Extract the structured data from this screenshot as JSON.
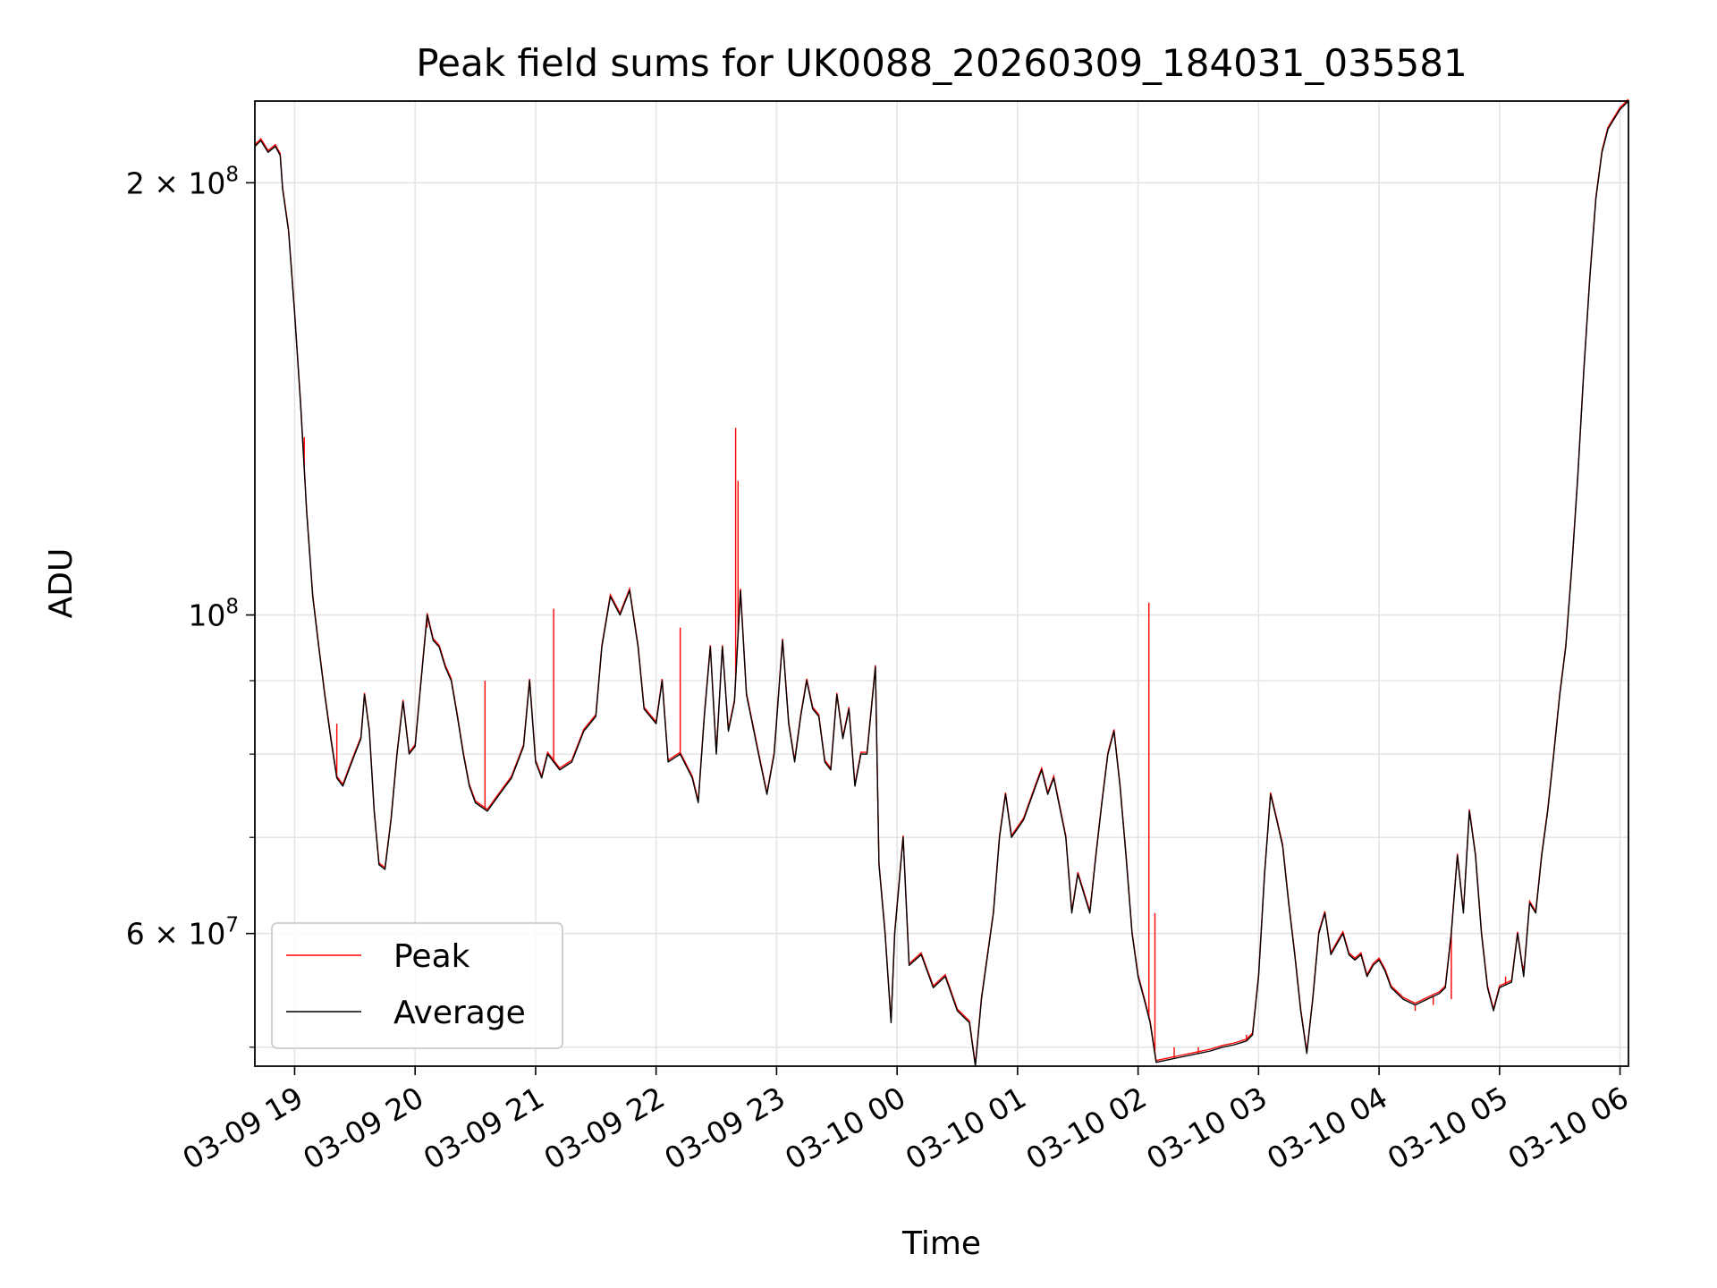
{
  "chart_data": {
    "type": "line",
    "title": "Peak field sums for UK0088_20260309_184031_035581",
    "xlabel": "Time",
    "ylabel": "ADU",
    "yscale": "log",
    "ylim": [
      48500000,
      228000000
    ],
    "xlim_hours": [
      18.67,
      30.07
    ],
    "grid": true,
    "legend_position": "lower-left",
    "x_ticks": [
      {
        "h": 19,
        "label": "03-09 19"
      },
      {
        "h": 20,
        "label": "03-09 20"
      },
      {
        "h": 21,
        "label": "03-09 21"
      },
      {
        "h": 22,
        "label": "03-09 22"
      },
      {
        "h": 23,
        "label": "03-09 23"
      },
      {
        "h": 24,
        "label": "03-10 00"
      },
      {
        "h": 25,
        "label": "03-10 01"
      },
      {
        "h": 26,
        "label": "03-10 02"
      },
      {
        "h": 27,
        "label": "03-10 03"
      },
      {
        "h": 28,
        "label": "03-10 04"
      },
      {
        "h": 29,
        "label": "03-10 05"
      },
      {
        "h": 30,
        "label": "03-10 06"
      }
    ],
    "y_major_ticks": [
      {
        "v": 60000000,
        "mant": "6",
        "exp": "7"
      },
      {
        "v": 100000000,
        "mant": "",
        "exp": "8"
      },
      {
        "v": 200000000,
        "mant": "2",
        "exp": "8"
      }
    ],
    "y_minor_ticks": [
      50000000,
      70000000,
      80000000,
      90000000
    ],
    "series": [
      {
        "name": "Peak",
        "color": "#ff0000",
        "spikes": [
          [
            19.08,
            133000000
          ],
          [
            19.35,
            84000000
          ],
          [
            20.1,
            98000000
          ],
          [
            20.58,
            90000000
          ],
          [
            21.15,
            101000000
          ],
          [
            22.2,
            98000000
          ],
          [
            22.66,
            135000000
          ],
          [
            22.68,
            124000000
          ],
          [
            26.09,
            102000000
          ],
          [
            26.14,
            62000000
          ],
          [
            26.3,
            50000000
          ],
          [
            26.5,
            50000000
          ],
          [
            26.7,
            50000000
          ],
          [
            26.9,
            51000000
          ],
          [
            28.3,
            53000000
          ],
          [
            28.45,
            53500000
          ],
          [
            28.6,
            54000000
          ],
          [
            29.05,
            56000000
          ],
          [
            29.2,
            57000000
          ]
        ]
      },
      {
        "name": "Average",
        "color": "#000000",
        "points": [
          [
            18.67,
            212000000
          ],
          [
            18.72,
            214000000
          ],
          [
            18.78,
            210000000
          ],
          [
            18.84,
            212000000
          ],
          [
            18.88,
            209000000
          ],
          [
            18.9,
            198000000
          ],
          [
            18.95,
            185000000
          ],
          [
            19.0,
            162000000
          ],
          [
            19.05,
            140000000
          ],
          [
            19.1,
            118000000
          ],
          [
            19.15,
            103000000
          ],
          [
            19.2,
            95000000
          ],
          [
            19.25,
            88000000
          ],
          [
            19.3,
            82000000
          ],
          [
            19.35,
            77000000
          ],
          [
            19.4,
            76000000
          ],
          [
            19.45,
            78000000
          ],
          [
            19.5,
            80000000
          ],
          [
            19.55,
            82000000
          ],
          [
            19.58,
            88000000
          ],
          [
            19.62,
            83000000
          ],
          [
            19.66,
            73000000
          ],
          [
            19.7,
            67000000
          ],
          [
            19.75,
            66500000
          ],
          [
            19.8,
            72000000
          ],
          [
            19.85,
            80000000
          ],
          [
            19.9,
            87000000
          ],
          [
            19.95,
            80000000
          ],
          [
            20.0,
            81000000
          ],
          [
            20.05,
            90000000
          ],
          [
            20.1,
            100000000
          ],
          [
            20.15,
            96000000
          ],
          [
            20.2,
            95000000
          ],
          [
            20.25,
            92000000
          ],
          [
            20.3,
            90000000
          ],
          [
            20.35,
            85000000
          ],
          [
            20.4,
            80000000
          ],
          [
            20.45,
            76000000
          ],
          [
            20.5,
            74000000
          ],
          [
            20.6,
            73000000
          ],
          [
            20.7,
            75000000
          ],
          [
            20.8,
            77000000
          ],
          [
            20.9,
            81000000
          ],
          [
            20.95,
            90000000
          ],
          [
            21.0,
            79000000
          ],
          [
            21.05,
            77000000
          ],
          [
            21.1,
            80000000
          ],
          [
            21.2,
            78000000
          ],
          [
            21.3,
            79000000
          ],
          [
            21.4,
            83000000
          ],
          [
            21.5,
            85000000
          ],
          [
            21.55,
            95000000
          ],
          [
            21.62,
            103000000
          ],
          [
            21.7,
            100000000
          ],
          [
            21.78,
            104000000
          ],
          [
            21.85,
            95000000
          ],
          [
            21.9,
            86000000
          ],
          [
            22.0,
            84000000
          ],
          [
            22.05,
            90000000
          ],
          [
            22.1,
            79000000
          ],
          [
            22.2,
            80000000
          ],
          [
            22.3,
            77000000
          ],
          [
            22.35,
            74000000
          ],
          [
            22.4,
            85000000
          ],
          [
            22.45,
            95000000
          ],
          [
            22.5,
            80000000
          ],
          [
            22.55,
            95000000
          ],
          [
            22.6,
            83000000
          ],
          [
            22.65,
            87000000
          ],
          [
            22.7,
            104000000
          ],
          [
            22.75,
            88000000
          ],
          [
            22.85,
            80000000
          ],
          [
            22.92,
            75000000
          ],
          [
            22.98,
            80000000
          ],
          [
            23.05,
            96000000
          ],
          [
            23.1,
            84000000
          ],
          [
            23.15,
            79000000
          ],
          [
            23.2,
            85000000
          ],
          [
            23.25,
            90000000
          ],
          [
            23.3,
            86000000
          ],
          [
            23.35,
            85000000
          ],
          [
            23.4,
            79000000
          ],
          [
            23.45,
            78000000
          ],
          [
            23.5,
            88000000
          ],
          [
            23.55,
            82000000
          ],
          [
            23.6,
            86000000
          ],
          [
            23.65,
            76000000
          ],
          [
            23.7,
            80000000
          ],
          [
            23.75,
            80000000
          ],
          [
            23.82,
            92000000
          ],
          [
            23.85,
            67000000
          ],
          [
            23.9,
            60000000
          ],
          [
            23.95,
            52000000
          ],
          [
            23.98,
            60000000
          ],
          [
            24.05,
            70000000
          ],
          [
            24.1,
            57000000
          ],
          [
            24.2,
            58000000
          ],
          [
            24.3,
            55000000
          ],
          [
            24.4,
            56000000
          ],
          [
            24.5,
            53000000
          ],
          [
            24.6,
            52000000
          ],
          [
            24.65,
            48500000
          ],
          [
            24.7,
            54000000
          ],
          [
            24.8,
            62000000
          ],
          [
            24.85,
            70000000
          ],
          [
            24.9,
            75000000
          ],
          [
            24.95,
            70000000
          ],
          [
            25.05,
            72000000
          ],
          [
            25.15,
            76000000
          ],
          [
            25.2,
            78000000
          ],
          [
            25.25,
            75000000
          ],
          [
            25.3,
            77000000
          ],
          [
            25.4,
            70000000
          ],
          [
            25.45,
            62000000
          ],
          [
            25.5,
            66000000
          ],
          [
            25.6,
            62000000
          ],
          [
            25.65,
            68000000
          ],
          [
            25.7,
            74000000
          ],
          [
            25.75,
            80000000
          ],
          [
            25.8,
            83000000
          ],
          [
            25.85,
            76000000
          ],
          [
            25.9,
            68000000
          ],
          [
            25.95,
            60000000
          ],
          [
            26.0,
            56000000
          ],
          [
            26.05,
            54000000
          ],
          [
            26.1,
            52000000
          ],
          [
            26.15,
            48800000
          ],
          [
            26.25,
            49000000
          ],
          [
            26.35,
            49200000
          ],
          [
            26.5,
            49500000
          ],
          [
            26.6,
            49700000
          ],
          [
            26.7,
            50000000
          ],
          [
            26.8,
            50200000
          ],
          [
            26.9,
            50500000
          ],
          [
            26.95,
            51000000
          ],
          [
            27.0,
            56000000
          ],
          [
            27.05,
            66000000
          ],
          [
            27.1,
            75000000
          ],
          [
            27.15,
            72000000
          ],
          [
            27.2,
            69000000
          ],
          [
            27.25,
            63000000
          ],
          [
            27.3,
            58000000
          ],
          [
            27.35,
            53000000
          ],
          [
            27.4,
            49500000
          ],
          [
            27.45,
            54000000
          ],
          [
            27.5,
            60000000
          ],
          [
            27.55,
            62000000
          ],
          [
            27.6,
            58000000
          ],
          [
            27.65,
            59000000
          ],
          [
            27.7,
            60000000
          ],
          [
            27.75,
            58000000
          ],
          [
            27.8,
            57500000
          ],
          [
            27.85,
            58000000
          ],
          [
            27.9,
            56000000
          ],
          [
            27.95,
            57000000
          ],
          [
            28.0,
            57500000
          ],
          [
            28.05,
            56500000
          ],
          [
            28.1,
            55000000
          ],
          [
            28.2,
            54000000
          ],
          [
            28.3,
            53500000
          ],
          [
            28.4,
            54000000
          ],
          [
            28.5,
            54500000
          ],
          [
            28.55,
            55000000
          ],
          [
            28.6,
            60000000
          ],
          [
            28.65,
            68000000
          ],
          [
            28.7,
            62000000
          ],
          [
            28.75,
            73000000
          ],
          [
            28.8,
            68000000
          ],
          [
            28.85,
            60000000
          ],
          [
            28.9,
            55000000
          ],
          [
            28.95,
            53000000
          ],
          [
            29.0,
            55000000
          ],
          [
            29.1,
            55500000
          ],
          [
            29.15,
            60000000
          ],
          [
            29.2,
            56000000
          ],
          [
            29.25,
            63000000
          ],
          [
            29.3,
            62000000
          ],
          [
            29.35,
            68000000
          ],
          [
            29.4,
            73000000
          ],
          [
            29.45,
            80000000
          ],
          [
            29.5,
            88000000
          ],
          [
            29.55,
            95000000
          ],
          [
            29.6,
            108000000
          ],
          [
            29.65,
            125000000
          ],
          [
            29.7,
            148000000
          ],
          [
            29.75,
            172000000
          ],
          [
            29.8,
            195000000
          ],
          [
            29.85,
            210000000
          ],
          [
            29.9,
            218000000
          ],
          [
            30.0,
            225000000
          ],
          [
            30.07,
            228000000
          ]
        ]
      }
    ]
  }
}
